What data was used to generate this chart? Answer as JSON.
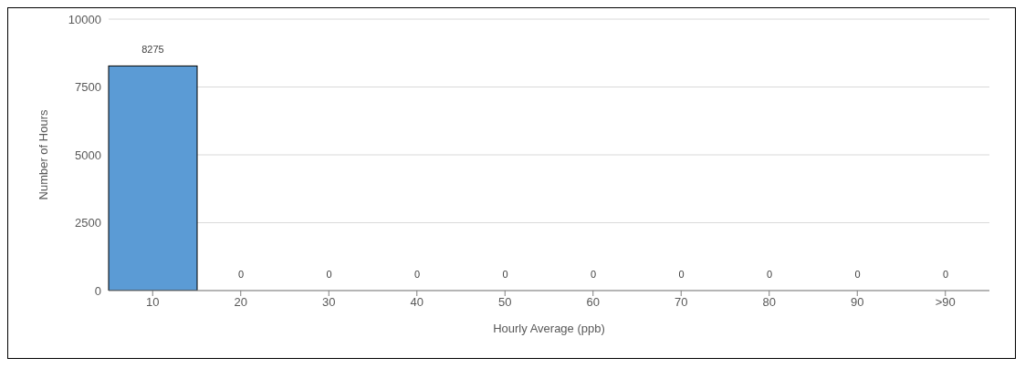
{
  "chart_data": {
    "type": "bar",
    "xlabel": "Hourly Average (ppb)",
    "ylabel": "Number of Hours",
    "categories": [
      "10",
      "20",
      "30",
      "40",
      "50",
      "60",
      "70",
      "80",
      "90",
      ">90"
    ],
    "values": [
      8275,
      0,
      0,
      0,
      0,
      0,
      0,
      0,
      0,
      0
    ],
    "color": "#5b9bd5",
    "ylim": [
      0,
      10000
    ],
    "yticks": [
      0,
      2500,
      5000,
      7500,
      10000
    ],
    "grid": "y",
    "data_labels": true
  }
}
